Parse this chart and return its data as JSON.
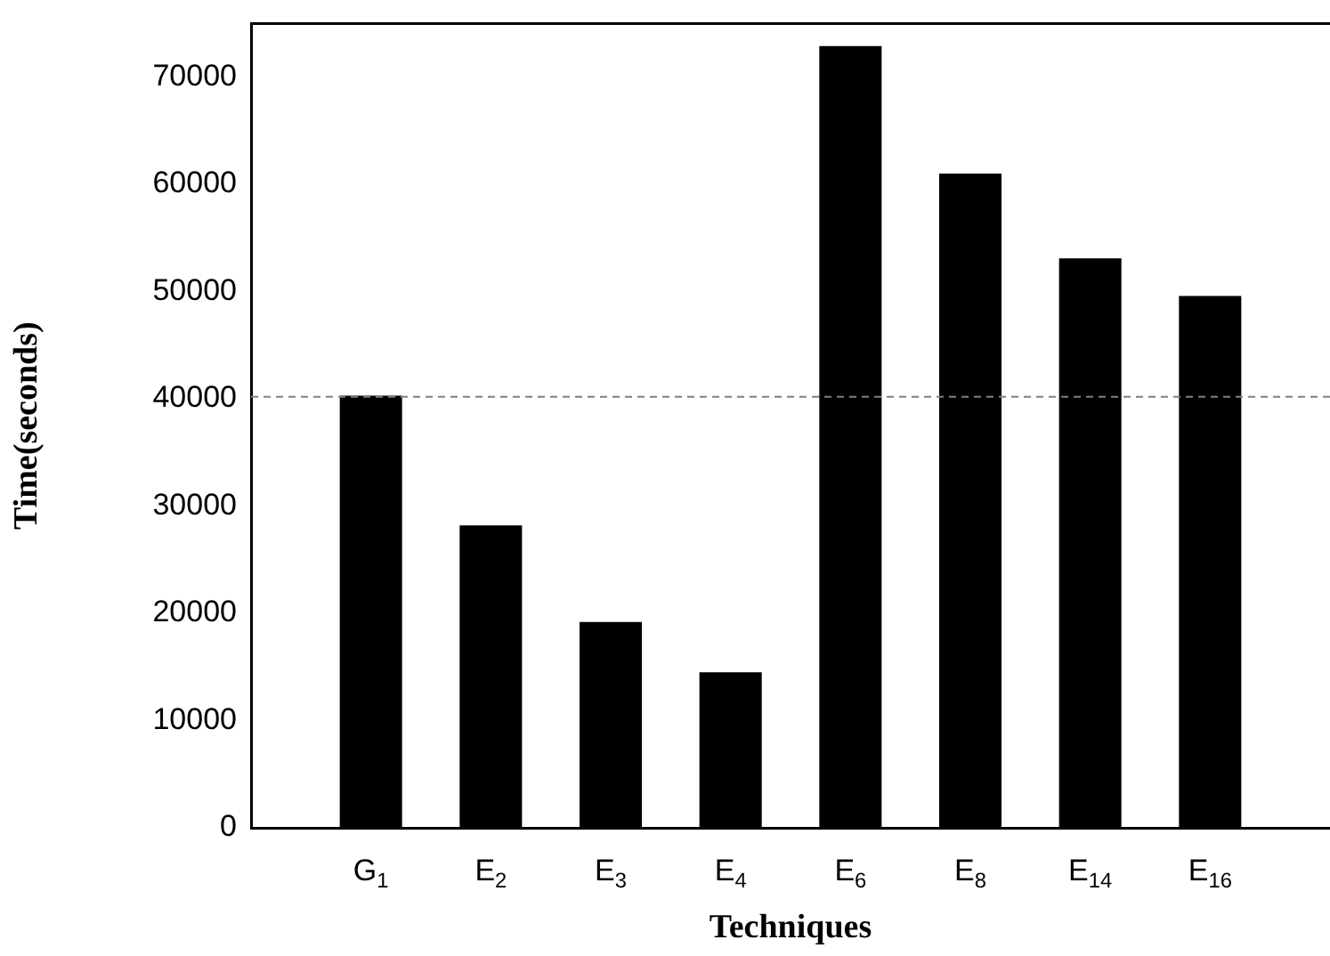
{
  "chart_data": {
    "type": "bar",
    "xlabel": "Techniques",
    "ylabel": "Time(seconds)",
    "categories": [
      null,
      "G$_{1}$",
      "E$_{2}$",
      "E$_{3}$",
      "E$_{4}$",
      "E$_{6}$",
      "E$_{8}$",
      "E$_{14}$",
      "E$_{16}$",
      null
    ],
    "values": [
      null,
      40300,
      28200,
      19200,
      14500,
      72900,
      61000,
      53100,
      49600,
      null
    ],
    "color": "#000000",
    "ylim": [
      0,
      75000
    ],
    "yticks": [
      0,
      10000,
      20000,
      30000,
      40000,
      50000,
      60000,
      70000
    ],
    "grid": false,
    "legend": false,
    "ref_lines": [
      {
        "axis": "y",
        "value": 40200,
        "color": "#808080",
        "line_style": "dashed"
      }
    ]
  }
}
